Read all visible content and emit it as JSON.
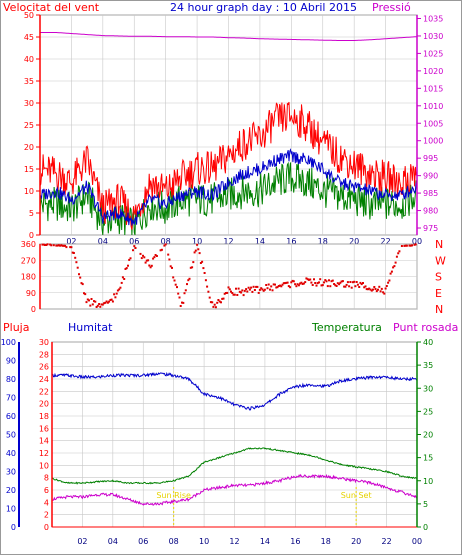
{
  "colors": {
    "wind_speed": "#ff0000",
    "wind_gust": "#0000cc",
    "wind_avg": "#008000",
    "pressure": "#cc00cc",
    "direction": "#e00000",
    "humidity": "#0000cc",
    "temperature": "#008000",
    "dewpoint": "#cc00cc",
    "rain": "#ff0000",
    "sun_markers": "#e6d200"
  },
  "chart_data": [
    {
      "type": "line",
      "title": "24 hour graph day : 10 Abril 2015",
      "left_label": "Velocitat del vent",
      "right_label": "Pressió",
      "x_ticks": [
        "02",
        "04",
        "06",
        "08",
        "10",
        "12",
        "14",
        "16",
        "18",
        "20",
        "22",
        "00"
      ],
      "y_left_ticks": [
        "0",
        "5",
        "10",
        "15",
        "20",
        "25",
        "30",
        "35",
        "40",
        "45",
        "50"
      ],
      "y_left_range": [
        0,
        50
      ],
      "y_right_ticks": [
        "975",
        "980",
        "985",
        "990",
        "995",
        "1000",
        "1005",
        "1010",
        "1015",
        "1020",
        "1025",
        "1030",
        "1035"
      ],
      "y_right_range": [
        973,
        1036
      ],
      "series": [
        {
          "key": "pressure",
          "values": [
            1031,
            1031,
            1030.7,
            1030.4,
            1030.1,
            1030,
            1029.9,
            1029.9,
            1029.8,
            1029.8,
            1029.7,
            1029.7,
            1029.5,
            1029.4,
            1029.2,
            1029.1,
            1029,
            1028.9,
            1028.8,
            1028.7,
            1028.7,
            1028.9,
            1029.2,
            1029.5,
            1029.8
          ]
        },
        {
          "key": "wind_speed",
          "values": [
            15,
            14,
            12,
            17,
            6,
            8,
            4,
            12,
            10,
            13,
            15,
            15,
            18,
            21,
            22,
            26,
            27,
            25,
            21,
            18,
            16,
            14,
            13,
            12,
            14
          ]
        },
        {
          "key": "wind_gust",
          "values": [
            9,
            10,
            8,
            11,
            4,
            5,
            3,
            8,
            7,
            9,
            10,
            9,
            12,
            14,
            15,
            17,
            18,
            17,
            15,
            12,
            11,
            10,
            9,
            9,
            11
          ]
        },
        {
          "key": "wind_avg",
          "values": [
            7,
            7,
            6,
            9,
            3,
            4,
            2,
            7,
            6,
            8,
            8,
            8,
            9,
            10,
            10,
            12,
            13,
            12,
            10,
            9,
            8,
            7,
            7,
            7,
            9
          ]
        }
      ]
    },
    {
      "type": "scatter",
      "y_ticks": [
        "360",
        "270",
        "180",
        "90",
        "0"
      ],
      "y_range": [
        0,
        360
      ],
      "compass": [
        "N",
        "W",
        "S",
        "E",
        "N"
      ],
      "x_ticks": [
        "02",
        "04",
        "06",
        "08",
        "10",
        "12",
        "14",
        "16",
        "18",
        "20",
        "22",
        "00"
      ],
      "values": [
        360,
        355,
        340,
        45,
        10,
        90,
        350,
        240,
        360,
        5,
        355,
        5,
        100,
        95,
        110,
        125,
        140,
        150,
        145,
        140,
        135,
        125,
        95,
        350,
        355
      ]
    },
    {
      "type": "line",
      "labels": {
        "rain": "Pluja",
        "humidity": "Humitat",
        "temperature": "Temperatura",
        "dewpoint": "Punt rosada"
      },
      "annotations": [
        "Sun Rise",
        "Sun Set"
      ],
      "sunrise_hour": 8,
      "sunset_hour": 20,
      "x_ticks": [
        "02",
        "04",
        "06",
        "08",
        "10",
        "12",
        "14",
        "16",
        "18",
        "20",
        "22",
        "00"
      ],
      "hum_ticks": [
        "0",
        "10",
        "20",
        "30",
        "40",
        "50",
        "60",
        "70",
        "80",
        "90",
        "100"
      ],
      "hum_range": [
        0,
        100
      ],
      "rain_ticks": [
        "0",
        "2",
        "4",
        "6",
        "8",
        "10",
        "12",
        "14",
        "16",
        "18",
        "20",
        "22",
        "24",
        "26",
        "28",
        "30"
      ],
      "rain_range": [
        0,
        30
      ],
      "temp_ticks": [
        "0",
        "5",
        "10",
        "15",
        "20",
        "25",
        "30",
        "35",
        "40"
      ],
      "temp_range": [
        0,
        40
      ],
      "series": [
        {
          "key": "humidity",
          "values": [
            82,
            82,
            81,
            81,
            82,
            82,
            82,
            83,
            82,
            80,
            72,
            70,
            66,
            64,
            66,
            72,
            76,
            77,
            76,
            79,
            80,
            81,
            81,
            80,
            80
          ]
        },
        {
          "key": "temperature",
          "values": [
            10.5,
            9.5,
            9.5,
            9.8,
            10,
            9.5,
            9.5,
            9.5,
            10,
            11,
            14,
            15,
            16,
            17,
            17,
            16.5,
            16,
            15.5,
            14.5,
            13.5,
            13,
            12.5,
            12,
            11,
            10.5
          ]
        },
        {
          "key": "dewpoint",
          "values": [
            6,
            6.5,
            6.5,
            7,
            7,
            6,
            5,
            5,
            5.5,
            6,
            8,
            8.5,
            9,
            9,
            9.5,
            10,
            11,
            11,
            11,
            10.5,
            10,
            9.5,
            8.5,
            7.5,
            6.5
          ]
        },
        {
          "key": "rain",
          "values": [
            0,
            0,
            0,
            0,
            0,
            0,
            0,
            0,
            0,
            0,
            0,
            0,
            0,
            0,
            0,
            0,
            0,
            0,
            0,
            0,
            0,
            0,
            0,
            0,
            0
          ]
        }
      ]
    }
  ]
}
